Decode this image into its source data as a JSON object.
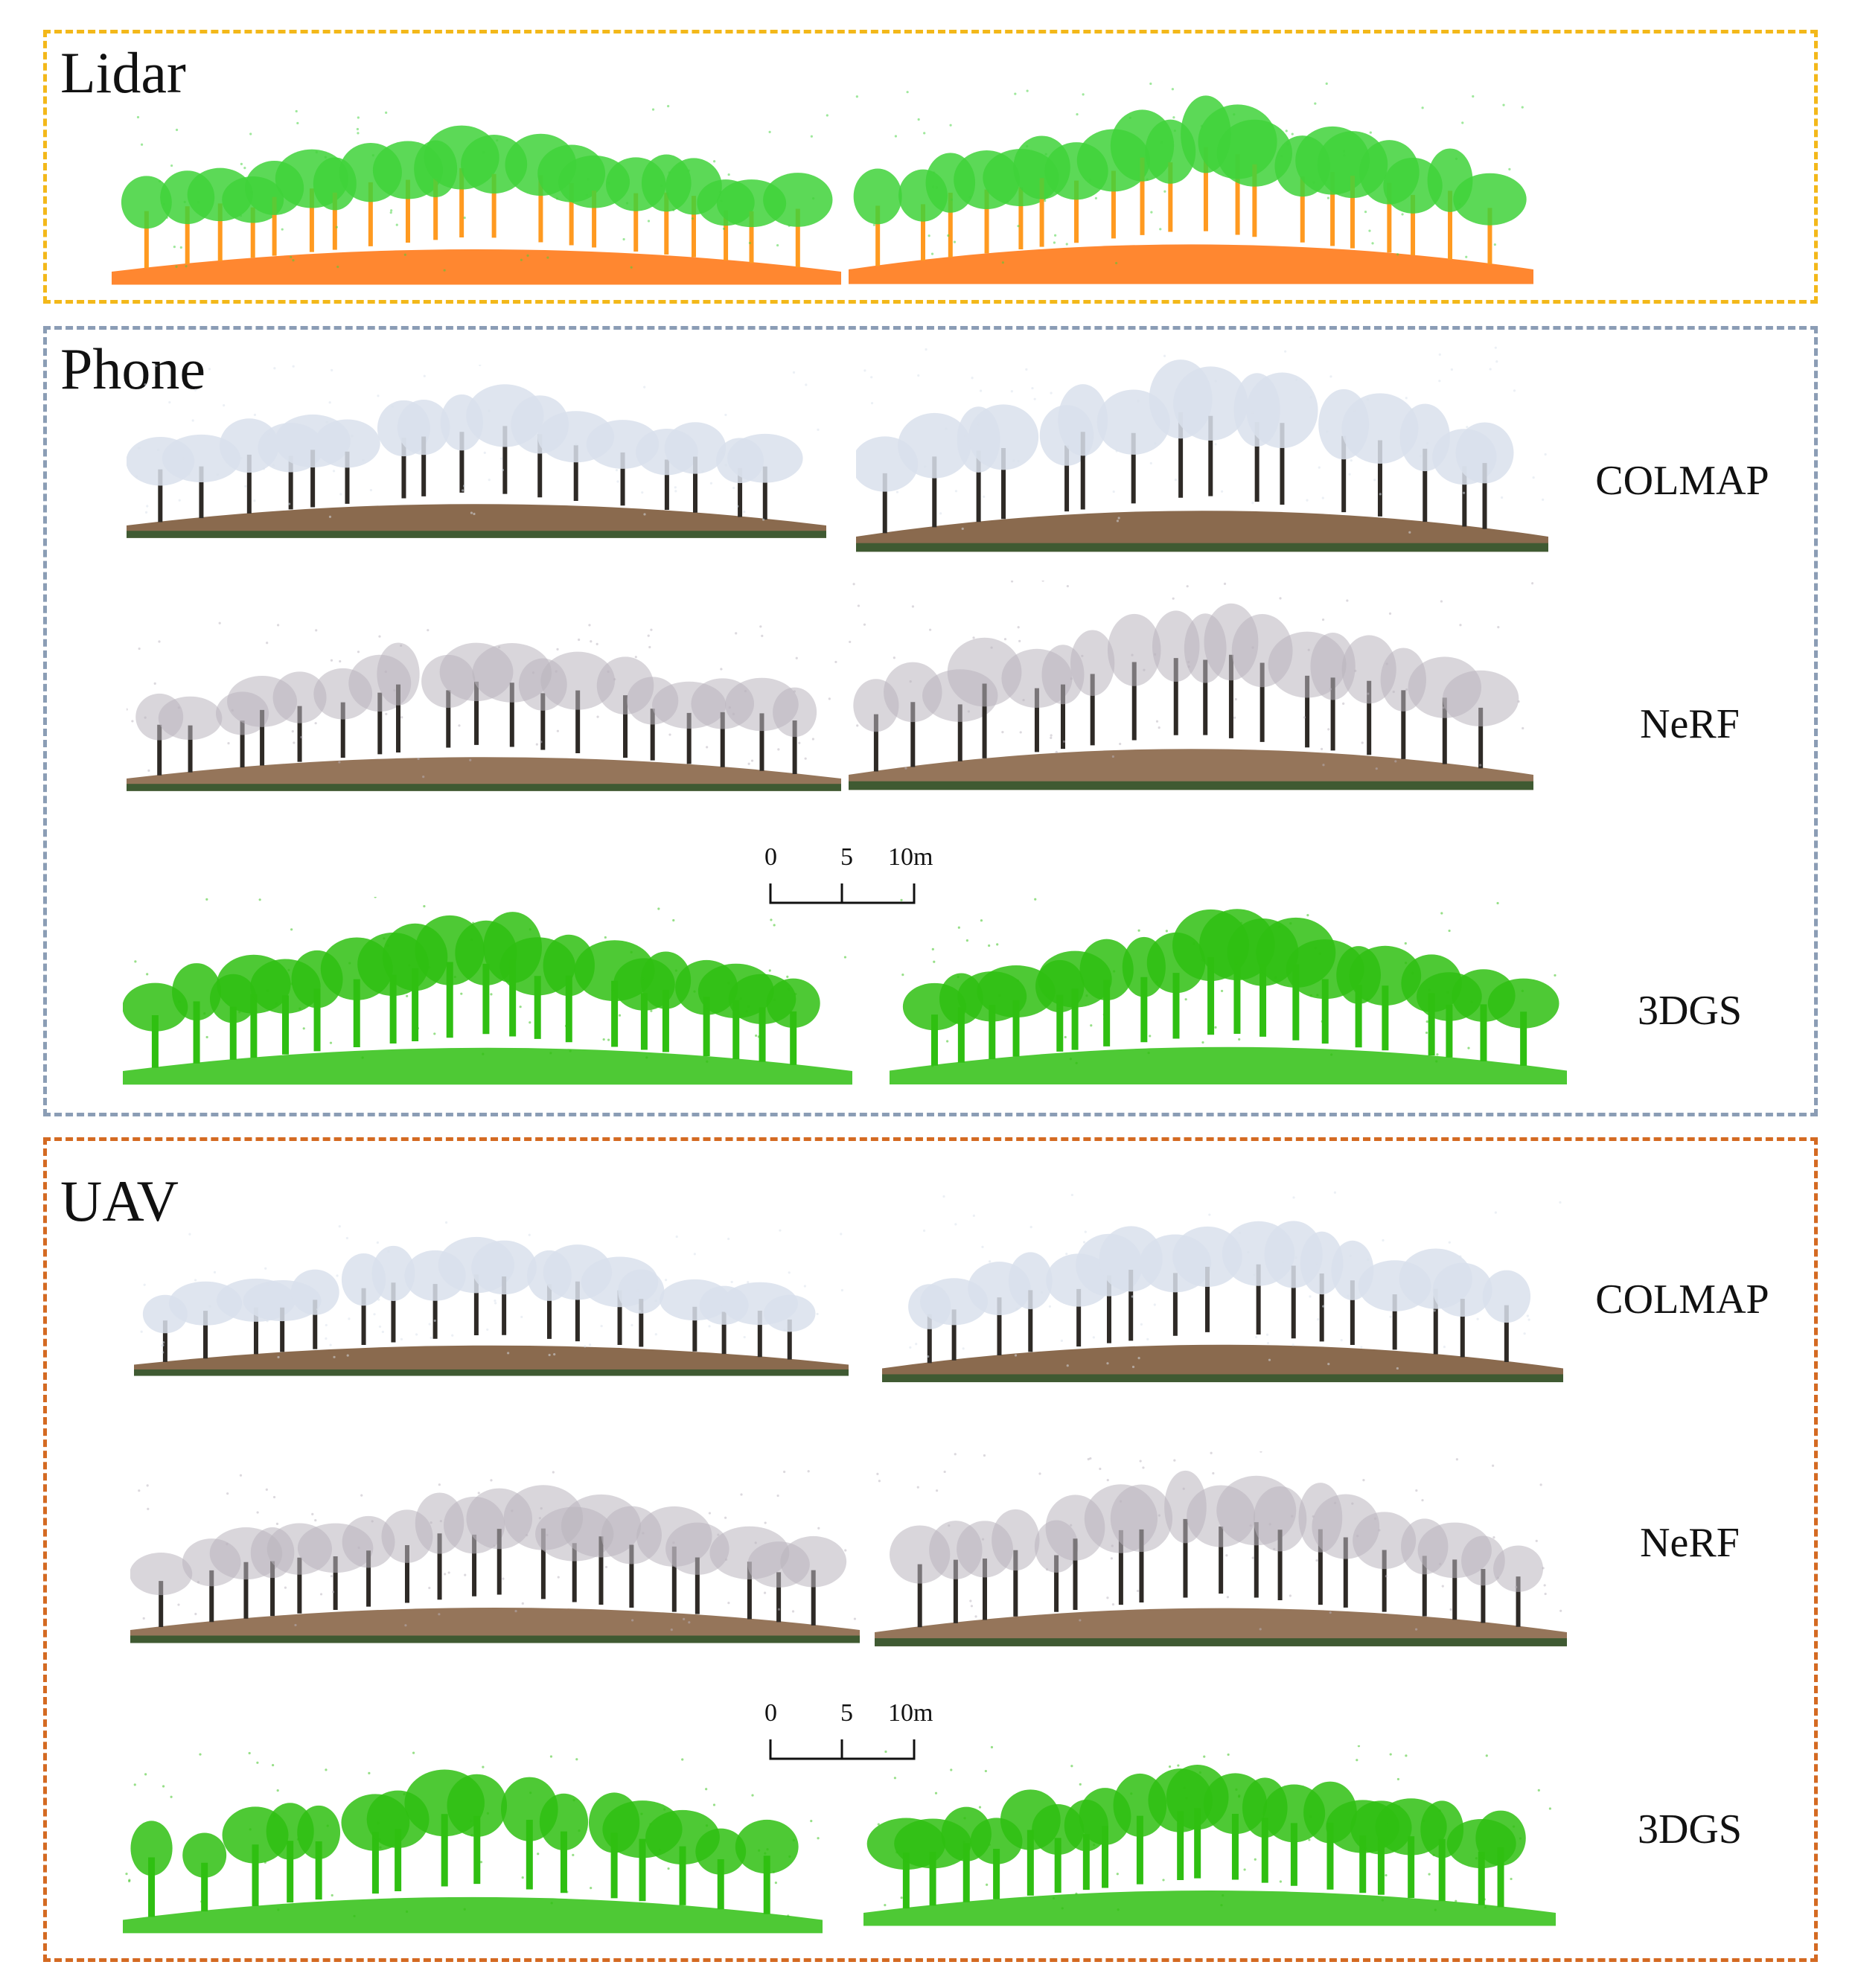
{
  "groups": {
    "lidar": {
      "title": "Lidar",
      "color": "#f3b81a"
    },
    "phone": {
      "title": "Phone",
      "color": "#8b9db5"
    },
    "uav": {
      "title": "UAV",
      "color": "#d46a22"
    }
  },
  "methods": {
    "colmap": "COLMAP",
    "nerf": "NeRF",
    "gs": "3DGS"
  },
  "scale": {
    "t0": "0",
    "t5": "5",
    "t10": "10m"
  },
  "palette": {
    "lidar_canopy": "#3fd23a",
    "lidar_ground": "#ff7a1a",
    "colmap_canopy": "#d9e1ec",
    "colmap_ground": "#7d5a3b",
    "nerf_canopy": "#b9b4bd",
    "nerf_ground": "#8a6648",
    "gs_canopy": "#2fbf12",
    "gs_ground": "#2fbf12"
  }
}
